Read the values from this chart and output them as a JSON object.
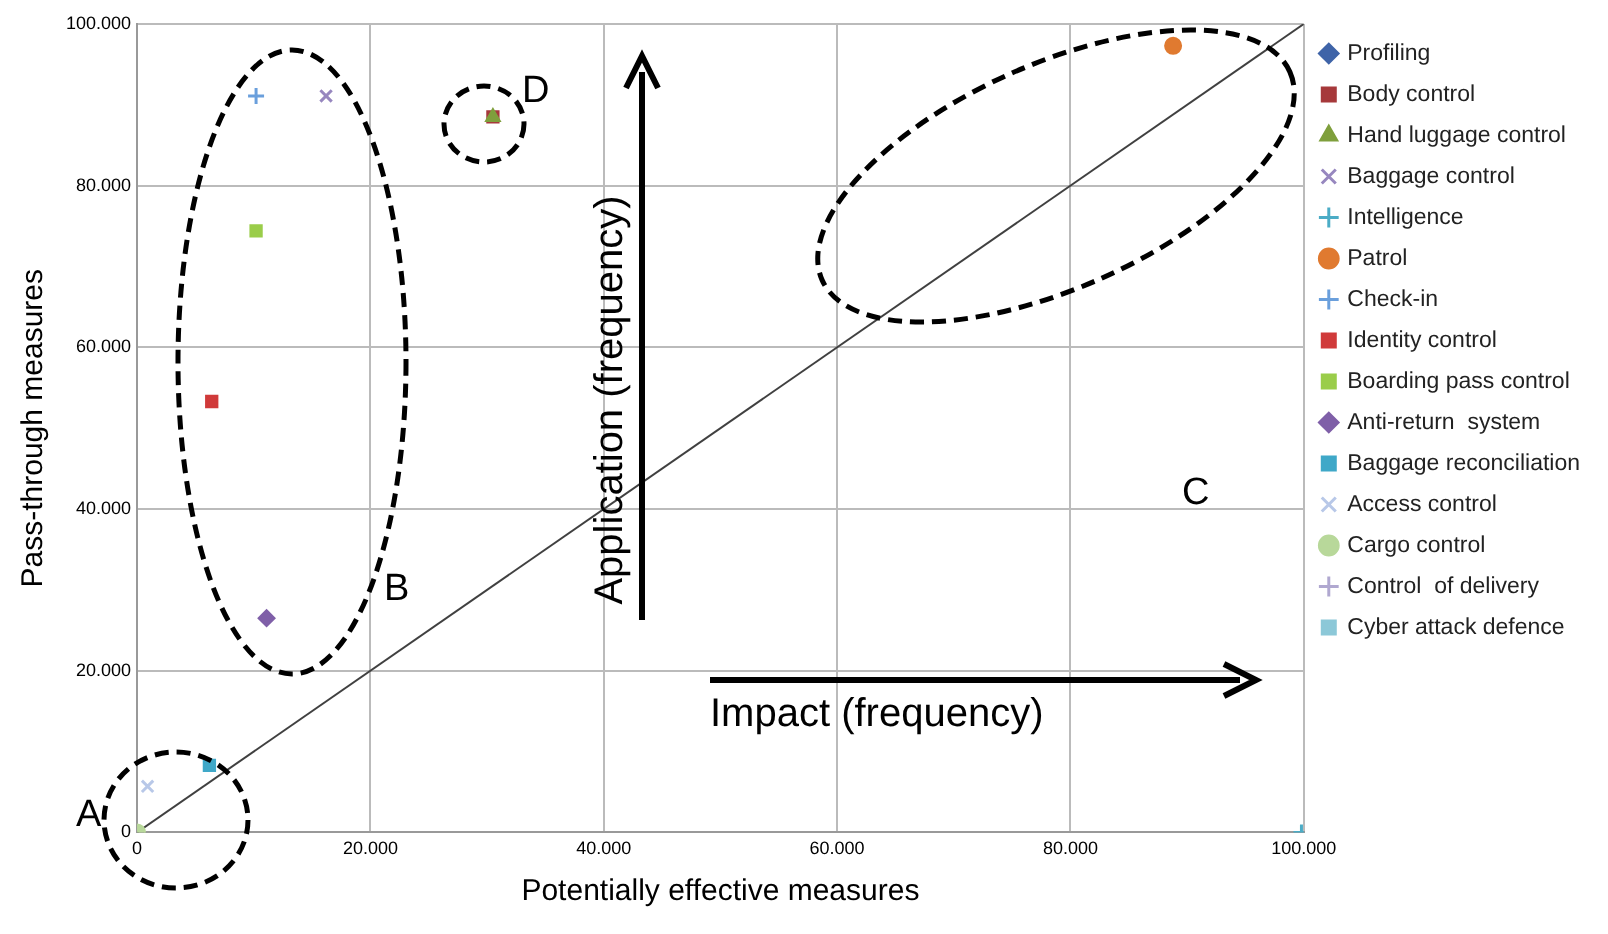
{
  "chart_data": {
    "type": "scatter",
    "xlabel": "Potentially effective measures",
    "ylabel": "Pass-through measures",
    "xlim": [
      0,
      100000
    ],
    "ylim": [
      0,
      100000
    ],
    "xticks": [
      0,
      {
        "value": 20000,
        "label": "20.000"
      },
      {
        "value": 40000,
        "label": "40.000"
      },
      {
        "value": 60000,
        "label": "60.000"
      },
      {
        "value": 80000,
        "label": "80.000"
      },
      {
        "value": 100000,
        "label": "100.000"
      }
    ],
    "yticks": [
      0,
      {
        "value": 20000,
        "label": "20.000"
      },
      {
        "value": 40000,
        "label": "40.000"
      },
      {
        "value": 60000,
        "label": "60.000"
      },
      {
        "value": 80000,
        "label": "80.000"
      },
      {
        "value": 100000,
        "label": "100.000"
      }
    ],
    "grid": true,
    "legend": "right",
    "annotations": [
      "A",
      "B",
      "C",
      "D",
      "Application (frequency)",
      "Impact (frequency)"
    ],
    "series": [
      {
        "name": "Profiling",
        "color": "#3f64a8",
        "marker": "diamond",
        "x": [
          null
        ],
        "values": [
          null
        ]
      },
      {
        "name": "Body control",
        "color": "#a6393b",
        "marker": "square",
        "x": [
          30500
        ],
        "values": [
          88500
        ]
      },
      {
        "name": "Hand luggage control",
        "color": "#7f9f3c",
        "marker": "triangle",
        "x": [
          30500
        ],
        "values": [
          88500
        ]
      },
      {
        "name": "Baggage control",
        "color": "#9787bf",
        "marker": "x",
        "x": [
          16200
        ],
        "values": [
          91100
        ]
      },
      {
        "name": "Intelligence",
        "color": "#4bacc6",
        "marker": "cross",
        "x": [
          99800
        ],
        "values": [
          0
        ]
      },
      {
        "name": "Patrol",
        "color": "#e07a30",
        "marker": "circle",
        "x": [
          88800
        ],
        "values": [
          97300
        ]
      },
      {
        "name": "Check-in",
        "color": "#6a9fdc",
        "marker": "cross",
        "x": [
          10200
        ],
        "values": [
          91100
        ]
      },
      {
        "name": "Identity control",
        "color": "#d03a3a",
        "marker": "square",
        "x": [
          6400
        ],
        "values": [
          53300
        ]
      },
      {
        "name": "Boarding pass control",
        "color": "#9acd4a",
        "marker": "square",
        "x": [
          10200
        ],
        "values": [
          74400
        ]
      },
      {
        "name": "Anti-return  system",
        "color": "#7f5fa8",
        "marker": "diamond",
        "x": [
          11100
        ],
        "values": [
          26500
        ]
      },
      {
        "name": "Baggage reconciliation",
        "color": "#3fa8c8",
        "marker": "square",
        "x": [
          6200
        ],
        "values": [
          8300
        ]
      },
      {
        "name": "Access control",
        "color": "#b8c8e8",
        "marker": "x",
        "x": [
          900
        ],
        "values": [
          5700
        ]
      },
      {
        "name": "Cargo control",
        "color": "#b8d89a",
        "marker": "circle",
        "x": [
          0
        ],
        "values": [
          0
        ]
      },
      {
        "name": "Control  of delivery",
        "color": "#b0a8d0",
        "marker": "cross",
        "x": [
          null
        ],
        "values": [
          null
        ]
      },
      {
        "name": "Cyber attack defence",
        "color": "#8cc8d8",
        "marker": "square",
        "x": [
          null
        ],
        "values": [
          null
        ]
      },
      {
        "type": "line",
        "color": "#404040",
        "x": [
          0,
          100000
        ],
        "values": [
          0,
          100000
        ]
      }
    ]
  }
}
